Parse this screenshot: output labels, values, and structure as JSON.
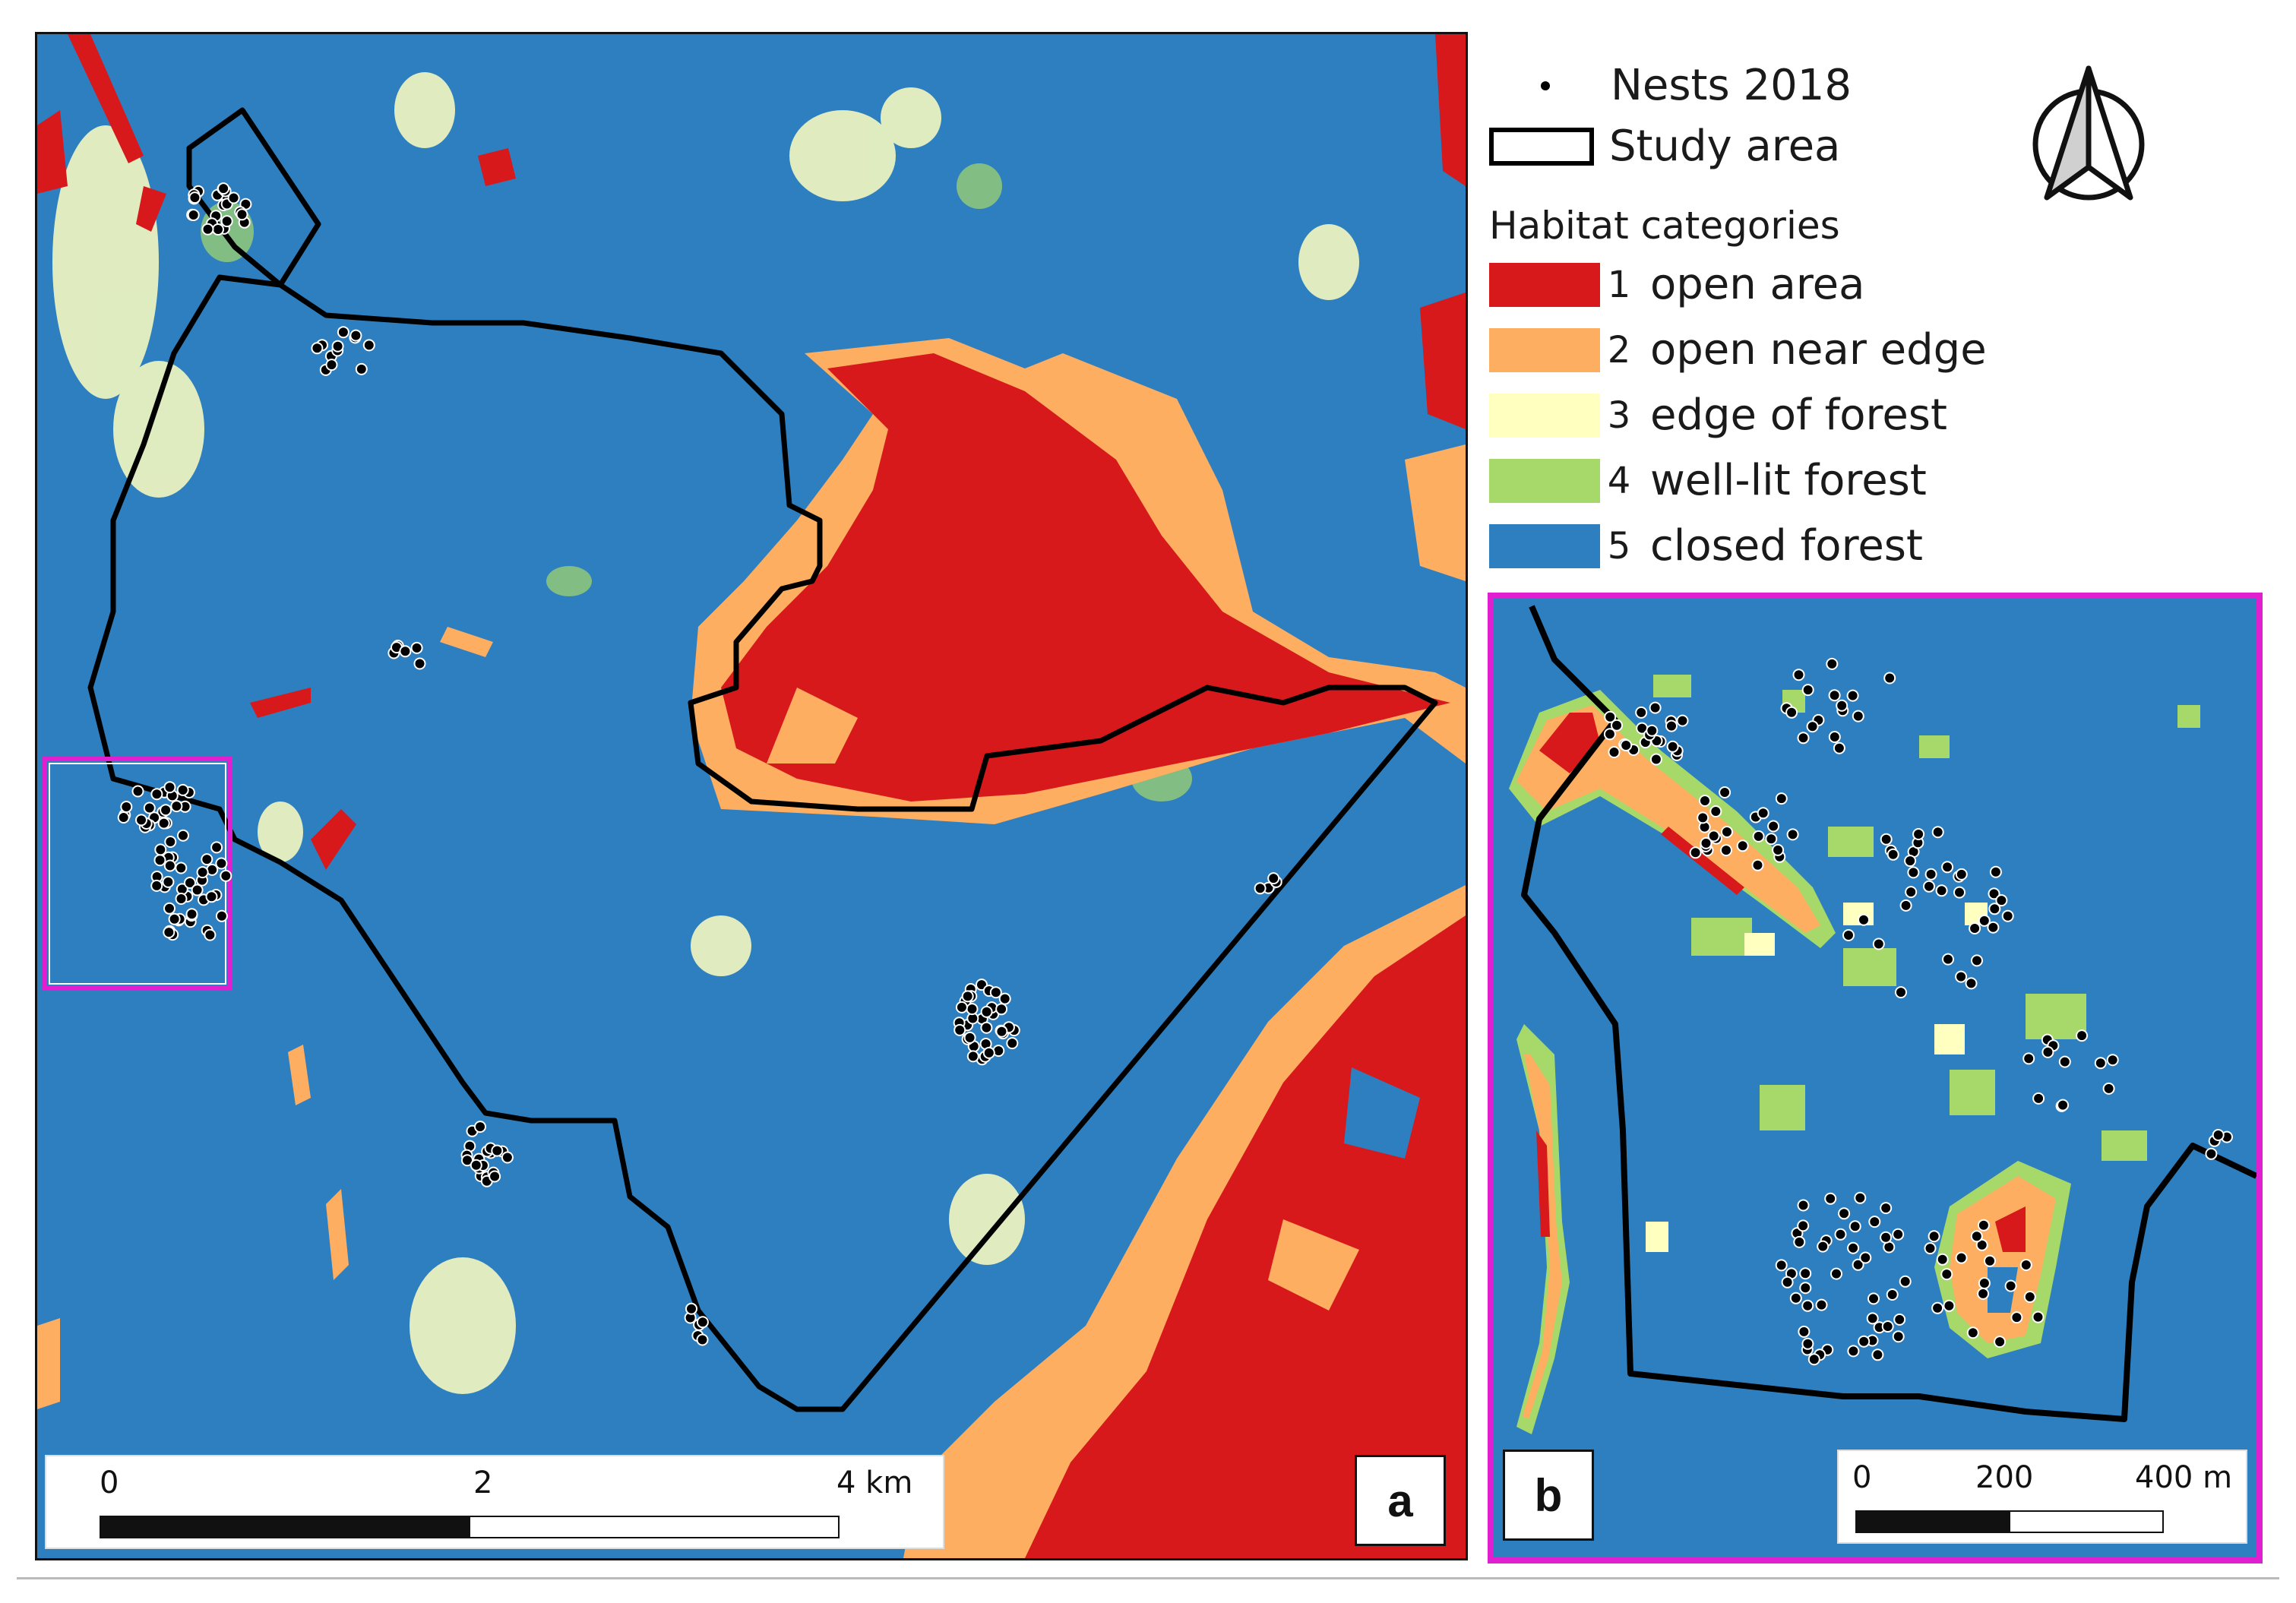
{
  "legend": {
    "nests_label": "Nests 2018",
    "study_area_label": "Study area",
    "habitat_title": "Habitat categories",
    "categories": [
      {
        "num": "1",
        "label": "open area",
        "color": "#d7191c"
      },
      {
        "num": "2",
        "label": "open near edge",
        "color": "#fdae61"
      },
      {
        "num": "3",
        "label": "edge of forest",
        "color": "#ffffbf"
      },
      {
        "num": "4",
        "label": "well-lit forest",
        "color": "#a6d96a"
      },
      {
        "num": "5",
        "label": "closed forest",
        "color": "#2e7fc0"
      }
    ]
  },
  "panel_a": {
    "label": "a",
    "scale": {
      "ticks": [
        "0",
        "2",
        "4 km"
      ]
    }
  },
  "panel_b": {
    "label": "b",
    "scale": {
      "ticks": [
        "0",
        "200",
        "400 m"
      ]
    }
  },
  "colors": {
    "inset_frame": "#e020d0",
    "study_area_outline": "#000000",
    "nest_fill": "#000000",
    "nest_stroke": "#ffffff"
  },
  "icons": {
    "north_arrow": "north-arrow-icon"
  }
}
